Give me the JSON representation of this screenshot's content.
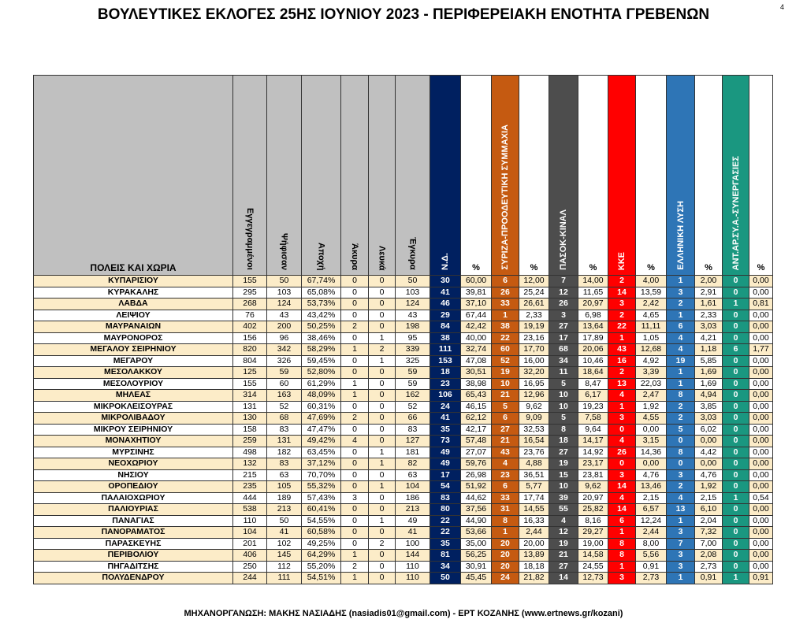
{
  "title": "ΒΟΥΛΕΥΤΙΚΕΣ ΕΚΛΟΓΕΣ 25ΗΣ ΙΟΥΝΙΟΥ 2023 - ΠΕΡΙΦΕΡΕΙΑΚΗ ΕΝΟΤΗΤΑ ΓΡΕΒΕΝΩΝ",
  "page_number": "4",
  "footer": "ΜΗΧΑΝΟΡΓΑΝΩΣΗ: ΜΑΚΗΣ ΝΑΣΙΑΔΗΣ (nasiadis01@gmail.com) - ΕΡΤ ΚΟΖΑΝΗΣ (www.ertnews.gr/kozani)",
  "table": {
    "name_header": "ΠΟΛΕΙΣ ΚΑΙ ΧΩΡΙΑ",
    "stat_headers": [
      "Εγγεγραμμένοι",
      "Ψήφισαν",
      "Αποχή",
      "Άκυρα",
      "Λευκά",
      "Έγκυρα"
    ],
    "pct_label": "%",
    "parties": [
      {
        "name": "Ν.Δ.",
        "color": "#002060"
      },
      {
        "name": "ΣΥΡΙΖΑ-ΠΡΟΟΔΕΥΤΙΚΗ ΣΥΜΜΑΧΙΑ",
        "color": "#c55a11"
      },
      {
        "name": "ΠΑΣΟΚ-ΚΙΝΑΛ",
        "color": "#4d4d4d"
      },
      {
        "name": "ΚΚΕ",
        "color": "#ff0000"
      },
      {
        "name": "ΕΛΛΗΝΙΚΗ ΛΥΣΗ",
        "color": "#2e75b6"
      },
      {
        "name": "ΑΝΤ.ΑΡ.ΣΥ.Α.-ΣΥΝΕΡΓΑΣΙΕΣ",
        "color": "#1a9780"
      }
    ],
    "row_highlight": "#fcecc8",
    "rows": [
      [
        "ΚΥΠΑΡΙΣΙΟΥ",
        "155",
        "50",
        "67,74%",
        "0",
        "0",
        "50",
        "30",
        "60,00",
        "6",
        "12,00",
        "7",
        "14,00",
        "2",
        "4,00",
        "1",
        "2,00",
        "0",
        "0,00"
      ],
      [
        "ΚΥΡΑΚΑΛΗΣ",
        "295",
        "103",
        "65,08%",
        "0",
        "0",
        "103",
        "41",
        "39,81",
        "26",
        "25,24",
        "12",
        "11,65",
        "14",
        "13,59",
        "3",
        "2,91",
        "0",
        "0,00"
      ],
      [
        "ΛΑΒΔΑ",
        "268",
        "124",
        "53,73%",
        "0",
        "0",
        "124",
        "46",
        "37,10",
        "33",
        "26,61",
        "26",
        "20,97",
        "3",
        "2,42",
        "2",
        "1,61",
        "1",
        "0,81"
      ],
      [
        "ΛΕΙΨΙΟΥ",
        "76",
        "43",
        "43,42%",
        "0",
        "0",
        "43",
        "29",
        "67,44",
        "1",
        "2,33",
        "3",
        "6,98",
        "2",
        "4,65",
        "1",
        "2,33",
        "0",
        "0,00"
      ],
      [
        "ΜΑΥΡΑΝΑΙΩΝ",
        "402",
        "200",
        "50,25%",
        "2",
        "0",
        "198",
        "84",
        "42,42",
        "38",
        "19,19",
        "27",
        "13,64",
        "22",
        "11,11",
        "6",
        "3,03",
        "0",
        "0,00"
      ],
      [
        "ΜΑΥΡΟΝΟΡΟΣ",
        "156",
        "96",
        "38,46%",
        "0",
        "1",
        "95",
        "38",
        "40,00",
        "22",
        "23,16",
        "17",
        "17,89",
        "1",
        "1,05",
        "4",
        "4,21",
        "0",
        "0,00"
      ],
      [
        "ΜΕΓΑΛΟΥ ΣΕΙΡΗΝΙΟΥ",
        "820",
        "342",
        "58,29%",
        "1",
        "2",
        "339",
        "111",
        "32,74",
        "60",
        "17,70",
        "68",
        "20,06",
        "43",
        "12,68",
        "4",
        "1,18",
        "6",
        "1,77"
      ],
      [
        "ΜΕΓΑΡΟΥ",
        "804",
        "326",
        "59,45%",
        "0",
        "1",
        "325",
        "153",
        "47,08",
        "52",
        "16,00",
        "34",
        "10,46",
        "16",
        "4,92",
        "19",
        "5,85",
        "0",
        "0,00"
      ],
      [
        "ΜΕΣΟΛΑΚΚΟΥ",
        "125",
        "59",
        "52,80%",
        "0",
        "0",
        "59",
        "18",
        "30,51",
        "19",
        "32,20",
        "11",
        "18,64",
        "2",
        "3,39",
        "1",
        "1,69",
        "0",
        "0,00"
      ],
      [
        "ΜΕΣΟΛΟΥΡΙΟΥ",
        "155",
        "60",
        "61,29%",
        "1",
        "0",
        "59",
        "23",
        "38,98",
        "10",
        "16,95",
        "5",
        "8,47",
        "13",
        "22,03",
        "1",
        "1,69",
        "0",
        "0,00"
      ],
      [
        "ΜΗΛΕΑΣ",
        "314",
        "163",
        "48,09%",
        "1",
        "0",
        "162",
        "106",
        "65,43",
        "21",
        "12,96",
        "10",
        "6,17",
        "4",
        "2,47",
        "8",
        "4,94",
        "0",
        "0,00"
      ],
      [
        "ΜΙΚΡΟΚΛΕΙΣΟΥΡΑΣ",
        "131",
        "52",
        "60,31%",
        "0",
        "0",
        "52",
        "24",
        "46,15",
        "5",
        "9,62",
        "10",
        "19,23",
        "1",
        "1,92",
        "2",
        "3,85",
        "0",
        "0,00"
      ],
      [
        "ΜΙΚΡΟΛΙΒΑΔΟΥ",
        "130",
        "68",
        "47,69%",
        "2",
        "0",
        "66",
        "41",
        "62,12",
        "6",
        "9,09",
        "5",
        "7,58",
        "3",
        "4,55",
        "2",
        "3,03",
        "0",
        "0,00"
      ],
      [
        "ΜΙΚΡΟΥ ΣΕΙΡΗΝΙΟΥ",
        "158",
        "83",
        "47,47%",
        "0",
        "0",
        "83",
        "35",
        "42,17",
        "27",
        "32,53",
        "8",
        "9,64",
        "0",
        "0,00",
        "5",
        "6,02",
        "0",
        "0,00"
      ],
      [
        "ΜΟΝΑΧΗΤΙΟΥ",
        "259",
        "131",
        "49,42%",
        "4",
        "0",
        "127",
        "73",
        "57,48",
        "21",
        "16,54",
        "18",
        "14,17",
        "4",
        "3,15",
        "0",
        "0,00",
        "0",
        "0,00"
      ],
      [
        "ΜΥΡΣΙΝΗΣ",
        "498",
        "182",
        "63,45%",
        "0",
        "1",
        "181",
        "49",
        "27,07",
        "43",
        "23,76",
        "27",
        "14,92",
        "26",
        "14,36",
        "8",
        "4,42",
        "0",
        "0,00"
      ],
      [
        "ΝΕΟΧΩΡΙΟΥ",
        "132",
        "83",
        "37,12%",
        "0",
        "1",
        "82",
        "49",
        "59,76",
        "4",
        "4,88",
        "19",
        "23,17",
        "0",
        "0,00",
        "0",
        "0,00",
        "0",
        "0,00"
      ],
      [
        "ΝΗΣΙΟΥ",
        "215",
        "63",
        "70,70%",
        "0",
        "0",
        "63",
        "17",
        "26,98",
        "23",
        "36,51",
        "15",
        "23,81",
        "3",
        "4,76",
        "3",
        "4,76",
        "0",
        "0,00"
      ],
      [
        "ΟΡΟΠΕΔΙΟΥ",
        "235",
        "105",
        "55,32%",
        "0",
        "1",
        "104",
        "54",
        "51,92",
        "6",
        "5,77",
        "10",
        "9,62",
        "14",
        "13,46",
        "2",
        "1,92",
        "0",
        "0,00"
      ],
      [
        "ΠΑΛΑΙΟΧΩΡΙΟΥ",
        "444",
        "189",
        "57,43%",
        "3",
        "0",
        "186",
        "83",
        "44,62",
        "33",
        "17,74",
        "39",
        "20,97",
        "4",
        "2,15",
        "4",
        "2,15",
        "1",
        "0,54"
      ],
      [
        "ΠΑΛΙΟΥΡΙΑΣ",
        "538",
        "213",
        "60,41%",
        "0",
        "0",
        "213",
        "80",
        "37,56",
        "31",
        "14,55",
        "55",
        "25,82",
        "14",
        "6,57",
        "13",
        "6,10",
        "0",
        "0,00"
      ],
      [
        "ΠΑΝΑΓΙΑΣ",
        "110",
        "50",
        "54,55%",
        "0",
        "1",
        "49",
        "22",
        "44,90",
        "8",
        "16,33",
        "4",
        "8,16",
        "6",
        "12,24",
        "1",
        "2,04",
        "0",
        "0,00"
      ],
      [
        "ΠΑΝΟΡΑΜΑΤΟΣ",
        "104",
        "41",
        "60,58%",
        "0",
        "0",
        "41",
        "22",
        "53,66",
        "1",
        "2,44",
        "12",
        "29,27",
        "1",
        "2,44",
        "3",
        "7,32",
        "0",
        "0,00"
      ],
      [
        "ΠΑΡΑΣΚΕΥΗΣ",
        "201",
        "102",
        "49,25%",
        "0",
        "2",
        "100",
        "35",
        "35,00",
        "20",
        "20,00",
        "19",
        "19,00",
        "8",
        "8,00",
        "7",
        "7,00",
        "0",
        "0,00"
      ],
      [
        "ΠΕΡΙΒΟΛΙΟΥ",
        "406",
        "145",
        "64,29%",
        "1",
        "0",
        "144",
        "81",
        "56,25",
        "20",
        "13,89",
        "21",
        "14,58",
        "8",
        "5,56",
        "3",
        "2,08",
        "0",
        "0,00"
      ],
      [
        "ΠΗΓΑΔΙΤΣΗΣ",
        "250",
        "112",
        "55,20%",
        "2",
        "0",
        "110",
        "34",
        "30,91",
        "20",
        "18,18",
        "27",
        "24,55",
        "1",
        "0,91",
        "3",
        "2,73",
        "0",
        "0,00"
      ],
      [
        "ΠΟΛΥΔΕΝΔΡΟΥ",
        "244",
        "111",
        "54,51%",
        "1",
        "0",
        "110",
        "50",
        "45,45",
        "24",
        "21,82",
        "14",
        "12,73",
        "3",
        "2,73",
        "1",
        "0,91",
        "1",
        "0,91"
      ]
    ]
  }
}
